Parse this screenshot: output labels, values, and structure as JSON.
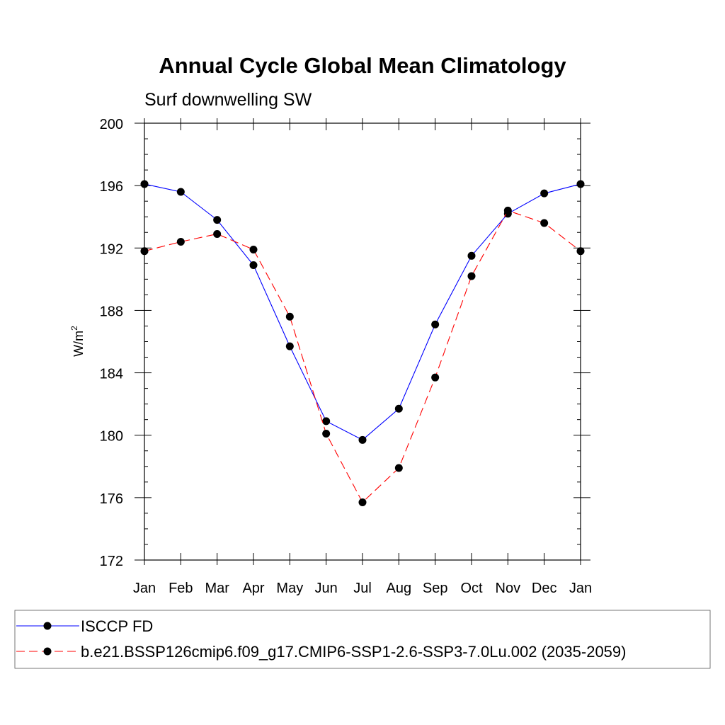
{
  "chart_data": {
    "type": "line",
    "title": "Annual Cycle Global Mean Climatology",
    "subtitle": "Surf downwelling SW",
    "ylabel": "W/m",
    "ylabel_superscript": "2",
    "xlabel": "",
    "categories": [
      "Jan",
      "Feb",
      "Mar",
      "Apr",
      "May",
      "Jun",
      "Jul",
      "Aug",
      "Sep",
      "Oct",
      "Nov",
      "Dec",
      "Jan"
    ],
    "ylim": [
      172,
      200
    ],
    "yticks": [
      172,
      176,
      180,
      184,
      188,
      192,
      196,
      200
    ],
    "y_minor_step": 1,
    "grid": false,
    "legend_position": "bottom",
    "series": [
      {
        "name": "ISCCP FD",
        "color": "#0000ff",
        "dash": "solid",
        "marker": "filled-circle",
        "values": [
          196.1,
          195.6,
          193.8,
          190.9,
          185.7,
          180.9,
          179.7,
          181.7,
          187.1,
          191.5,
          194.2,
          195.5,
          196.1
        ]
      },
      {
        "name": "b.e21.BSSP126cmip6.f09_g17.CMIP6-SSP1-2.6-SSP3-7.0Lu.002 (2035-2059)",
        "color": "#ff0000",
        "dash": "dashed",
        "marker": "filled-circle",
        "values": [
          191.8,
          192.4,
          192.9,
          191.9,
          187.6,
          180.1,
          175.7,
          177.9,
          183.7,
          190.2,
          194.4,
          193.6,
          191.8
        ]
      }
    ]
  }
}
